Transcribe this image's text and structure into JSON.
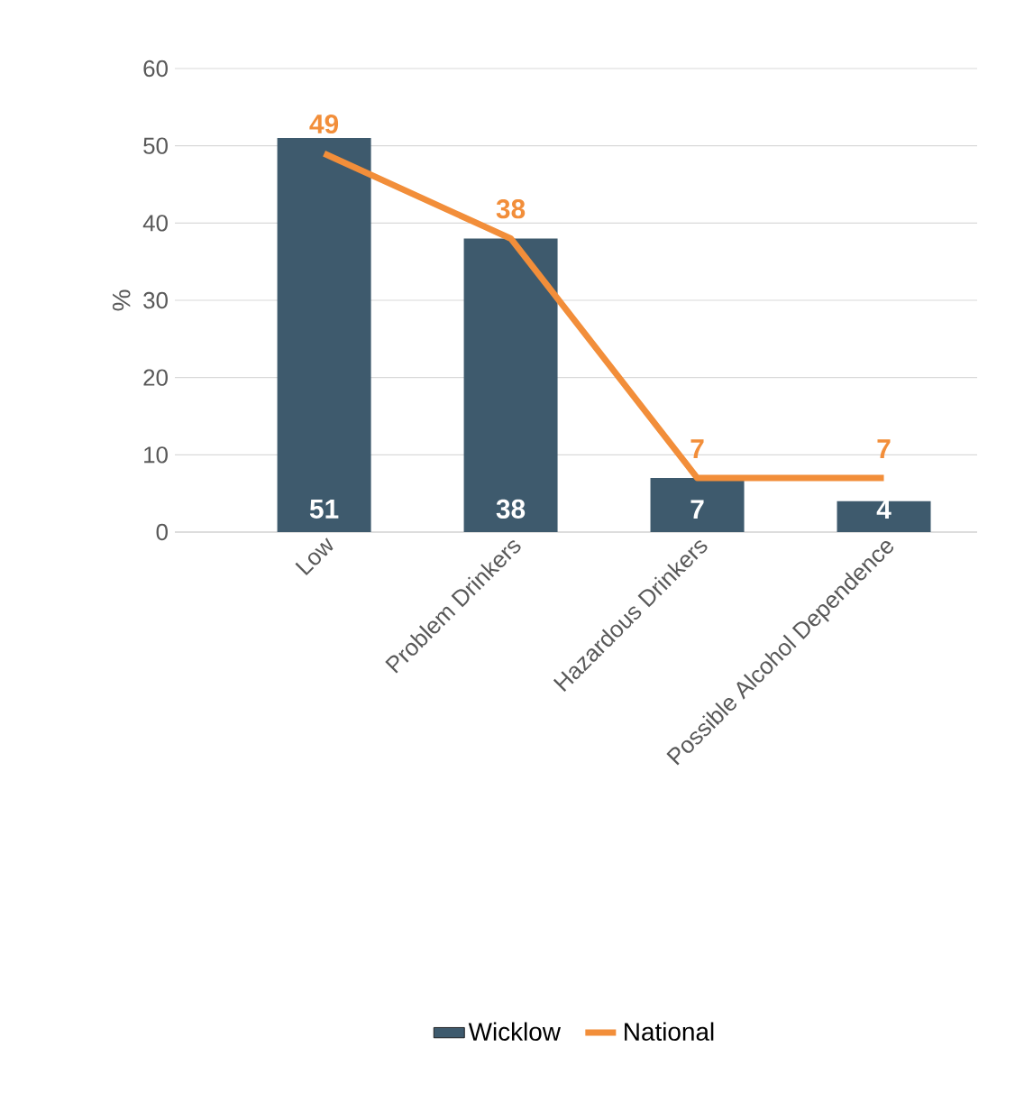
{
  "chart_data": {
    "type": "bar",
    "ylabel": "%",
    "categories": [
      "Low",
      "Problem Drinkers",
      "Hazardous Drinkers",
      "Possible Alcohol Dependence"
    ],
    "series": [
      {
        "name": "Wicklow",
        "color": "#3e5a6d",
        "values": [
          51,
          38,
          7,
          4
        ]
      },
      {
        "name": "National",
        "type": "line",
        "color": "#f28e3a",
        "values": [
          49,
          38,
          7,
          7
        ]
      }
    ],
    "ylim": [
      0,
      60
    ],
    "yticks": [
      0,
      10,
      20,
      30,
      40,
      50,
      60
    ],
    "grid": "y",
    "legend": "bottom",
    "data_labels": true
  }
}
